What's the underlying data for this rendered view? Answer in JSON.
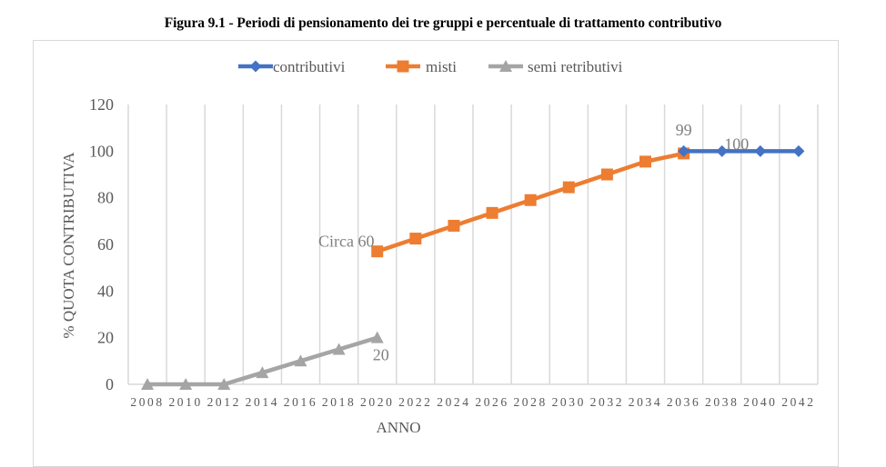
{
  "figure_title": "Figura 9.1 - Periodi di pensionamento dei tre gruppi e percentuale di trattamento contributivo",
  "chart_data": {
    "type": "line",
    "title": "Figura 9.1 - Periodi di pensionamento dei tre gruppi e percentuale di trattamento contributivo",
    "xlabel": "ANNO",
    "ylabel": "% QUOTA CONTRIBUTIVA",
    "ylim": [
      0,
      120
    ],
    "yticks": [
      "0",
      "20",
      "40",
      "60",
      "80",
      "100",
      "120"
    ],
    "categories": [
      "2008",
      "2010",
      "2012",
      "2014",
      "2016",
      "2018",
      "2020",
      "2022",
      "2024",
      "2026",
      "2028",
      "2030",
      "2032",
      "2034",
      "2036",
      "2038",
      "2040",
      "2042"
    ],
    "grid": "vertical",
    "legend": "top",
    "series": [
      {
        "name": "contributivi",
        "color": "#4472c4",
        "marker": "diamond",
        "values": [
          null,
          null,
          null,
          null,
          null,
          null,
          null,
          null,
          null,
          null,
          null,
          null,
          null,
          null,
          100,
          100,
          100,
          100
        ]
      },
      {
        "name": "misti",
        "color": "#ed7d31",
        "marker": "square",
        "values": [
          null,
          null,
          null,
          null,
          null,
          null,
          57,
          62.5,
          68,
          73.5,
          79,
          84.5,
          90,
          95.5,
          99,
          null,
          null,
          null
        ]
      },
      {
        "name": "semi retributivi",
        "color": "#a5a5a5",
        "marker": "triangle",
        "values": [
          0,
          0,
          0,
          5,
          10,
          15,
          20,
          null,
          null,
          null,
          null,
          null,
          null,
          null,
          null,
          null,
          null,
          null
        ]
      }
    ],
    "annotations": [
      {
        "text": "Circa 60",
        "series": "misti",
        "category": "2020"
      },
      {
        "text": "20",
        "series": "semi retributivi",
        "category": "2020"
      },
      {
        "text": "99",
        "series": "misti",
        "category": "2036"
      },
      {
        "text": "100",
        "series": "contributivi",
        "category": "2038"
      }
    ]
  }
}
